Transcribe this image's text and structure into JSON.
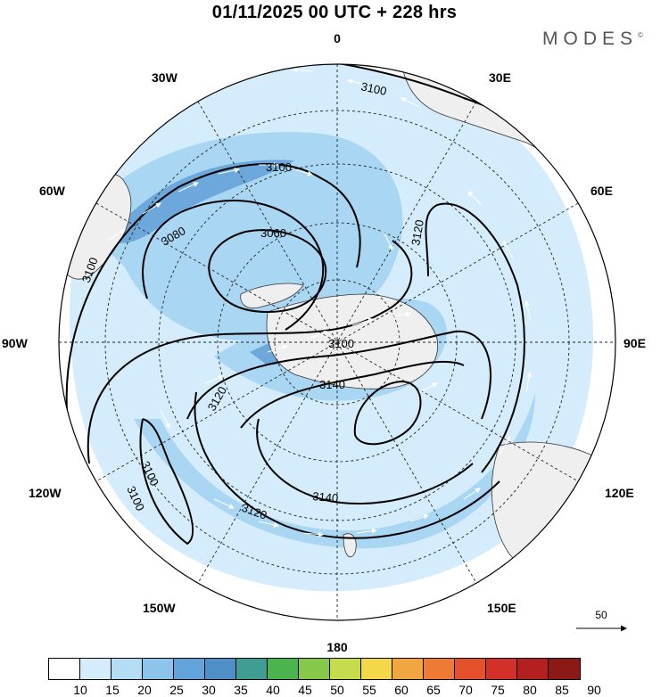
{
  "title": "01/11/2025  00 UTC  + 228 hrs",
  "brand": "MODES",
  "brand_mark": "©",
  "longitudes": {
    "top": "0",
    "right": "90E",
    "bottom": "180",
    "left": "90W",
    "l30w": "30W",
    "l30e": "30E",
    "l60w": "60W",
    "l60e": "60E",
    "l120w": "120W",
    "l120e": "120E",
    "l150w": "150W",
    "l150e": "150E"
  },
  "contour_labels": {
    "c1": "3100",
    "c2": "3100",
    "c3": "3080",
    "c4": "3060",
    "c5": "3120",
    "c6": "3100",
    "c7": "3100",
    "c8": "3120",
    "c9": "3140",
    "c10": "3100",
    "c11": "3100",
    "c12": "3120",
    "c13": "3140",
    "c14": "3100"
  },
  "reference_vector": "50",
  "colorbar": {
    "labels": [
      "10",
      "15",
      "20",
      "25",
      "30",
      "35",
      "40",
      "45",
      "50",
      "55",
      "60",
      "65",
      "70",
      "75",
      "80",
      "85",
      "90"
    ],
    "colors": [
      "#ffffff",
      "#d4ecfb",
      "#b3dcf5",
      "#8cc4ec",
      "#62a3dc",
      "#4f8fc8",
      "#3f9e92",
      "#4cb44e",
      "#86c84a",
      "#c7dc4c",
      "#f4d84a",
      "#f2a640",
      "#ef7a35",
      "#e4502c",
      "#d3302a",
      "#b3201f",
      "#8b1a16"
    ]
  },
  "colors": {
    "land": "#efefef",
    "wind_light": "#d4ecfb",
    "wind_mid": "#a9d6f2",
    "wind_strong": "#6da8dc"
  }
}
